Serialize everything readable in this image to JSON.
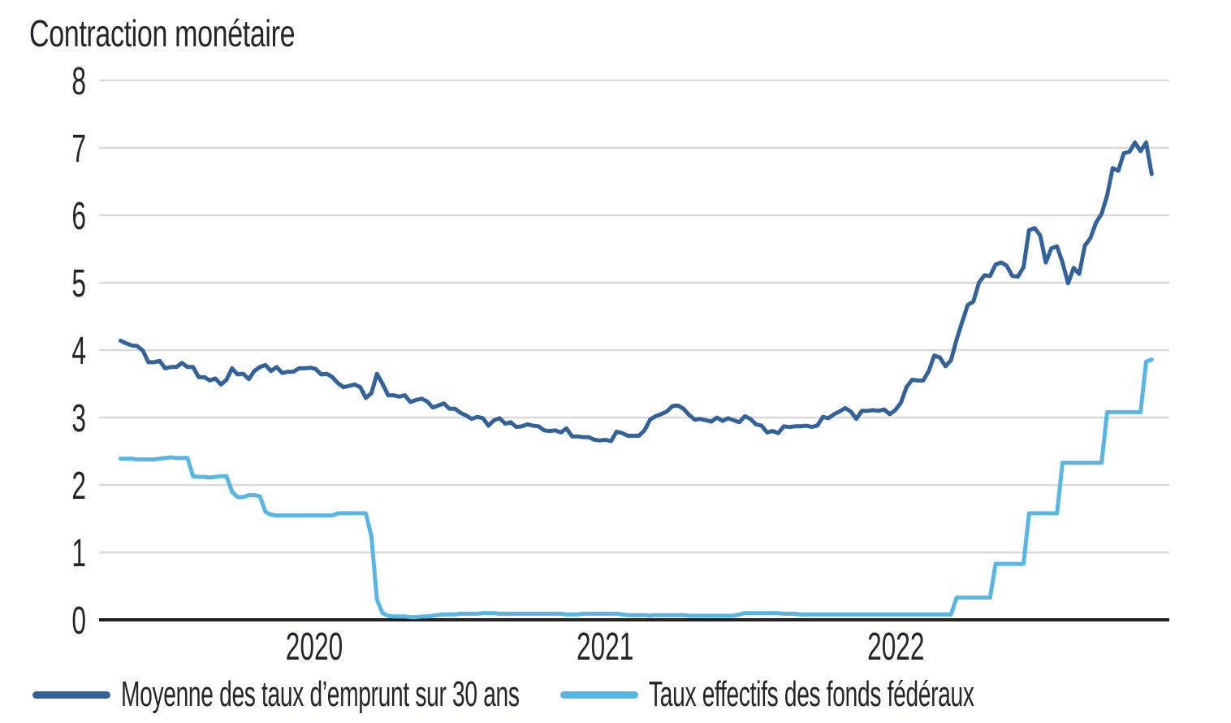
{
  "title": "Contraction monétaire",
  "colors": {
    "series1": "#33619a",
    "series2": "#57b6e4",
    "gridline": "#d9d9d9",
    "axis": "#231f20",
    "text": "#26242b",
    "background": "#ffffff"
  },
  "legend": [
    {
      "label": "Moyenne des taux d’emprunt sur 30 ans",
      "color": "#33619a"
    },
    {
      "label": "Taux effectifs des fonds fédéraux",
      "color": "#57b6e4"
    }
  ],
  "chart_data": {
    "type": "line",
    "title": "Contraction monétaire",
    "x_axis": {
      "ticks": [
        2020,
        2021,
        2022
      ],
      "tick_labels": [
        "2020",
        "2021",
        "2022"
      ],
      "range": [
        2019.26,
        2022.94
      ]
    },
    "y_axis": {
      "ticks": [
        0,
        1,
        2,
        3,
        4,
        5,
        6,
        7,
        8
      ],
      "tick_labels": [
        "0",
        "1",
        "2",
        "3",
        "4",
        "5",
        "6",
        "7",
        "8"
      ],
      "range": [
        0,
        8
      ],
      "grid": true
    },
    "x_unit": "decimal year, weekly samples (May 2019 - Nov 2022)",
    "x_start": 2019.334,
    "x_step": 0.019165,
    "legend_position": "bottom-left",
    "grid": true,
    "series": [
      {
        "name": "Moyenne des taux d’emprunt sur 30 ans",
        "color": "#33619a",
        "values": [
          4.14,
          4.1,
          4.07,
          4.06,
          3.99,
          3.82,
          3.82,
          3.84,
          3.73,
          3.75,
          3.75,
          3.81,
          3.75,
          3.75,
          3.6,
          3.6,
          3.55,
          3.58,
          3.49,
          3.56,
          3.73,
          3.64,
          3.65,
          3.57,
          3.69,
          3.75,
          3.78,
          3.69,
          3.75,
          3.66,
          3.68,
          3.68,
          3.73,
          3.73,
          3.74,
          3.72,
          3.64,
          3.65,
          3.6,
          3.51,
          3.45,
          3.47,
          3.49,
          3.45,
          3.29,
          3.36,
          3.65,
          3.5,
          3.33,
          3.33,
          3.31,
          3.33,
          3.23,
          3.26,
          3.28,
          3.24,
          3.15,
          3.18,
          3.21,
          3.13,
          3.13,
          3.07,
          3.03,
          2.98,
          3.01,
          2.99,
          2.88,
          2.96,
          2.99,
          2.91,
          2.93,
          2.86,
          2.87,
          2.9,
          2.88,
          2.87,
          2.81,
          2.8,
          2.81,
          2.78,
          2.84,
          2.72,
          2.72,
          2.71,
          2.71,
          2.67,
          2.66,
          2.67,
          2.65,
          2.79,
          2.77,
          2.73,
          2.73,
          2.73,
          2.81,
          2.97,
          3.02,
          3.05,
          3.09,
          3.17,
          3.18,
          3.13,
          3.04,
          2.97,
          2.98,
          2.96,
          2.94,
          3.0,
          2.95,
          2.99,
          2.96,
          2.93,
          3.02,
          2.98,
          2.9,
          2.88,
          2.78,
          2.8,
          2.77,
          2.87,
          2.86,
          2.87,
          2.87,
          2.88,
          2.86,
          2.88,
          3.01,
          2.99,
          3.05,
          3.09,
          3.14,
          3.09,
          2.98,
          3.1,
          3.1,
          3.11,
          3.1,
          3.12,
          3.05,
          3.11,
          3.22,
          3.45,
          3.56,
          3.55,
          3.55,
          3.69,
          3.92,
          3.89,
          3.76,
          3.85,
          4.16,
          4.42,
          4.67,
          4.72,
          5.0,
          5.11,
          5.1,
          5.27,
          5.3,
          5.25,
          5.1,
          5.09,
          5.23,
          5.78,
          5.81,
          5.7,
          5.3,
          5.51,
          5.54,
          5.3,
          4.99,
          5.22,
          5.13,
          5.55,
          5.66,
          5.89,
          6.02,
          6.29,
          6.7,
          6.66,
          6.92,
          6.94,
          7.08,
          6.95,
          7.08,
          6.61
        ]
      },
      {
        "name": "Taux effectifs des fonds fédéraux",
        "color": "#57b6e4",
        "values": [
          2.39,
          2.39,
          2.39,
          2.38,
          2.38,
          2.38,
          2.38,
          2.39,
          2.4,
          2.41,
          2.4,
          2.4,
          2.4,
          2.13,
          2.12,
          2.12,
          2.11,
          2.12,
          2.13,
          2.13,
          1.9,
          1.82,
          1.82,
          1.85,
          1.85,
          1.83,
          1.6,
          1.56,
          1.55,
          1.55,
          1.55,
          1.55,
          1.55,
          1.55,
          1.55,
          1.55,
          1.55,
          1.55,
          1.55,
          1.58,
          1.58,
          1.58,
          1.58,
          1.58,
          1.58,
          1.24,
          0.3,
          0.1,
          0.06,
          0.05,
          0.05,
          0.05,
          0.04,
          0.04,
          0.05,
          0.05,
          0.06,
          0.07,
          0.08,
          0.08,
          0.08,
          0.09,
          0.09,
          0.09,
          0.09,
          0.1,
          0.1,
          0.1,
          0.09,
          0.09,
          0.09,
          0.09,
          0.09,
          0.09,
          0.09,
          0.09,
          0.09,
          0.09,
          0.09,
          0.09,
          0.08,
          0.08,
          0.08,
          0.09,
          0.09,
          0.09,
          0.09,
          0.09,
          0.09,
          0.09,
          0.08,
          0.07,
          0.07,
          0.07,
          0.07,
          0.06,
          0.07,
          0.07,
          0.07,
          0.07,
          0.07,
          0.07,
          0.06,
          0.06,
          0.06,
          0.06,
          0.06,
          0.06,
          0.06,
          0.06,
          0.06,
          0.08,
          0.1,
          0.1,
          0.1,
          0.1,
          0.1,
          0.1,
          0.1,
          0.09,
          0.09,
          0.09,
          0.08,
          0.08,
          0.08,
          0.08,
          0.08,
          0.08,
          0.08,
          0.08,
          0.08,
          0.08,
          0.08,
          0.08,
          0.08,
          0.08,
          0.08,
          0.08,
          0.08,
          0.08,
          0.08,
          0.08,
          0.08,
          0.08,
          0.08,
          0.08,
          0.08,
          0.08,
          0.08,
          0.08,
          0.33,
          0.33,
          0.33,
          0.33,
          0.33,
          0.33,
          0.33,
          0.83,
          0.83,
          0.83,
          0.83,
          0.83,
          0.83,
          1.58,
          1.58,
          1.58,
          1.58,
          1.58,
          1.58,
          2.33,
          2.33,
          2.33,
          2.33,
          2.33,
          2.33,
          2.33,
          2.33,
          3.08,
          3.08,
          3.08,
          3.08,
          3.08,
          3.08,
          3.08,
          3.83,
          3.86
        ]
      }
    ]
  }
}
